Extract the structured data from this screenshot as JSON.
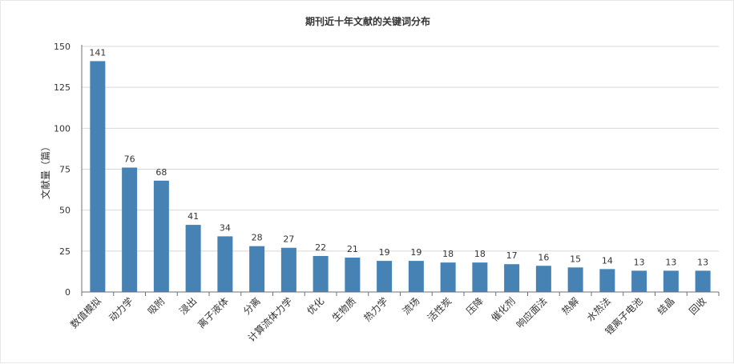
{
  "chart_data": {
    "type": "bar",
    "title": "期刊近十年文献的关键词分布",
    "xlabel": "",
    "ylabel": "文献量（篇）",
    "ylim": [
      0,
      150
    ],
    "yticks": [
      0,
      25,
      50,
      75,
      100,
      125,
      150
    ],
    "grid": true,
    "bar_color": "#4682b4",
    "categories": [
      "数值模拟",
      "动力学",
      "吸附",
      "浸出",
      "离子液体",
      "分离",
      "计算流体力学",
      "优化",
      "生物质",
      "热力学",
      "流场",
      "活性炭",
      "压降",
      "催化剂",
      "响应面法",
      "热解",
      "水热法",
      "锂离子电池",
      "结晶",
      "回收"
    ],
    "values": [
      141,
      76,
      68,
      41,
      34,
      28,
      27,
      22,
      21,
      19,
      19,
      18,
      18,
      17,
      16,
      15,
      14,
      13,
      13,
      13
    ]
  }
}
